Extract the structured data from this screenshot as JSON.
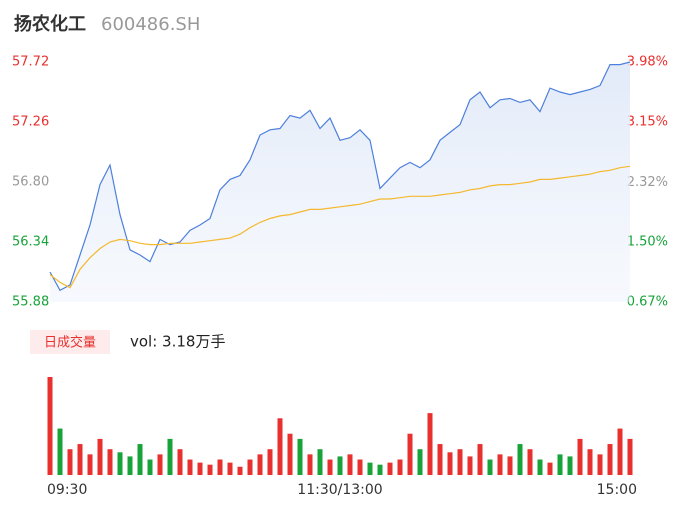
{
  "header": {
    "title": "扬农化工",
    "code": "600486.SH"
  },
  "chart_data": {
    "type": "line",
    "categories": [
      "09:30",
      null,
      null,
      null,
      null,
      null,
      null,
      null,
      null,
      null,
      null,
      null,
      null,
      null,
      null,
      null,
      null,
      null,
      null,
      null,
      null,
      null,
      null,
      null,
      null,
      null,
      null,
      null,
      null,
      "11:30/13:00",
      null,
      null,
      null,
      null,
      null,
      null,
      null,
      null,
      null,
      null,
      null,
      null,
      null,
      null,
      null,
      null,
      null,
      null,
      null,
      null,
      null,
      null,
      null,
      null,
      null,
      null,
      null,
      null,
      "15:00"
    ],
    "series": [
      {
        "name": "price",
        "color": "#4d7fdc",
        "values": [
          56.11,
          55.97,
          56.01,
          56.24,
          56.47,
          56.78,
          56.93,
          56.55,
          56.28,
          56.24,
          56.19,
          56.36,
          56.32,
          56.34,
          56.43,
          56.47,
          56.52,
          56.74,
          56.82,
          56.85,
          56.97,
          57.16,
          57.2,
          57.21,
          57.31,
          57.29,
          57.35,
          57.21,
          57.29,
          57.12,
          57.14,
          57.2,
          57.12,
          56.75,
          56.83,
          56.91,
          56.95,
          56.91,
          56.97,
          57.12,
          57.18,
          57.24,
          57.43,
          57.49,
          57.37,
          57.43,
          57.44,
          57.41,
          57.43,
          57.34,
          57.52,
          57.49,
          57.47,
          57.49,
          57.51,
          57.54,
          57.7,
          57.7,
          57.72
        ]
      },
      {
        "name": "average",
        "color": "#f5b82e",
        "values": [
          56.09,
          56.03,
          55.99,
          56.13,
          56.22,
          56.29,
          56.34,
          56.36,
          56.35,
          56.33,
          56.32,
          56.32,
          56.33,
          56.33,
          56.33,
          56.34,
          56.35,
          56.36,
          56.37,
          56.4,
          56.45,
          56.49,
          56.52,
          56.54,
          56.55,
          56.57,
          56.59,
          56.59,
          56.6,
          56.61,
          56.62,
          56.63,
          56.65,
          56.67,
          56.67,
          56.68,
          56.69,
          56.69,
          56.69,
          56.7,
          56.71,
          56.72,
          56.74,
          56.75,
          56.77,
          56.78,
          56.78,
          56.79,
          56.8,
          56.82,
          56.82,
          56.83,
          56.84,
          56.85,
          56.86,
          56.88,
          56.89,
          56.91,
          56.92
        ]
      }
    ],
    "ylim": [
      55.88,
      57.72
    ],
    "yticks": [
      57.72,
      57.26,
      {
        "value": 56.8,
        "label": "56.80"
      },
      56.34,
      55.88
    ],
    "y2lim": [
      0.67,
      3.98
    ],
    "y2ticks": [
      {
        "value": 3.98,
        "label": "3.98%"
      },
      {
        "value": 3.15,
        "label": "3.15%"
      },
      {
        "value": 2.32,
        "label": "2.32%"
      },
      {
        "value": 1.5,
        "label": "1.50%"
      },
      {
        "value": 0.67,
        "label": "0.67%"
      }
    ],
    "up_color": "#e8312f",
    "down_color": "#18a33a",
    "neutral_color": "#999999",
    "volume_button": "日成交量",
    "volume_label": "vol: 3.18万手",
    "volume": [
      95,
      45,
      25,
      30,
      20,
      35,
      25,
      22,
      18,
      30,
      15,
      20,
      35,
      25,
      15,
      12,
      10,
      15,
      12,
      8,
      15,
      20,
      25,
      55,
      40,
      35,
      20,
      25,
      15,
      18,
      20,
      15,
      12,
      10,
      12,
      15,
      40,
      25,
      60,
      30,
      22,
      25,
      18,
      30,
      15,
      20,
      18,
      30,
      25,
      15,
      12,
      20,
      18,
      35,
      25,
      20,
      30,
      45,
      35
    ]
  }
}
